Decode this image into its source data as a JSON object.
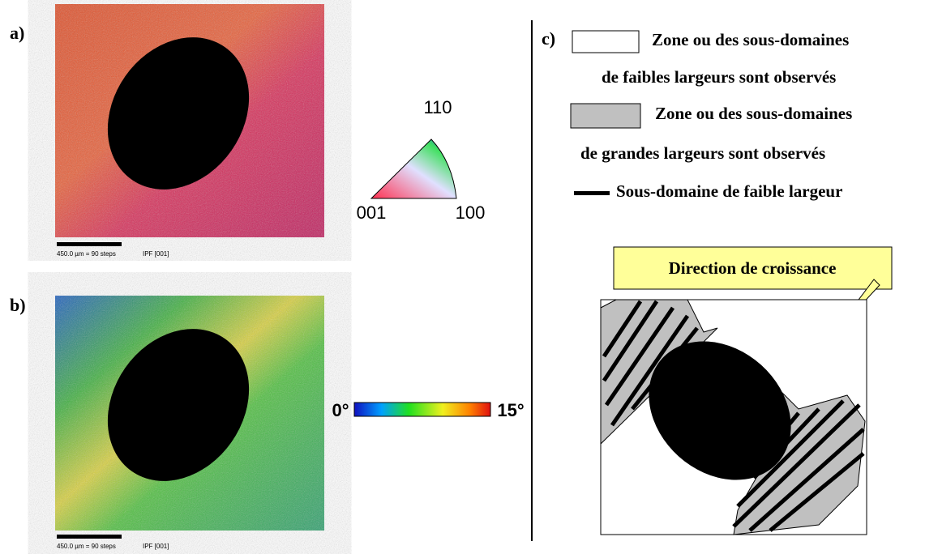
{
  "panels": [
    {
      "label": "a)",
      "scale_bar": "450.0 µm = 90 steps",
      "map_type": "IPF [001]"
    },
    {
      "label": "b)",
      "scale_bar": "450.0 µm = 90 steps",
      "map_type": "IPF [001]"
    }
  ],
  "ipf_key": {
    "top": "110",
    "left": "001",
    "right": "100"
  },
  "color_scale": {
    "min_label": "0°",
    "max_label": "15°"
  },
  "legend": {
    "label": "c)",
    "items": [
      {
        "lines": [
          "Zone ou des sous-domaines",
          "de faibles largeurs sont observés"
        ]
      },
      {
        "lines": [
          "Zone ou des sous-domaines",
          "de grandes largeurs sont observés"
        ]
      },
      {
        "lines": [
          "Sous-domaine de faible largeur"
        ]
      }
    ]
  },
  "diagram": {
    "callout": "Direction de croissance"
  }
}
